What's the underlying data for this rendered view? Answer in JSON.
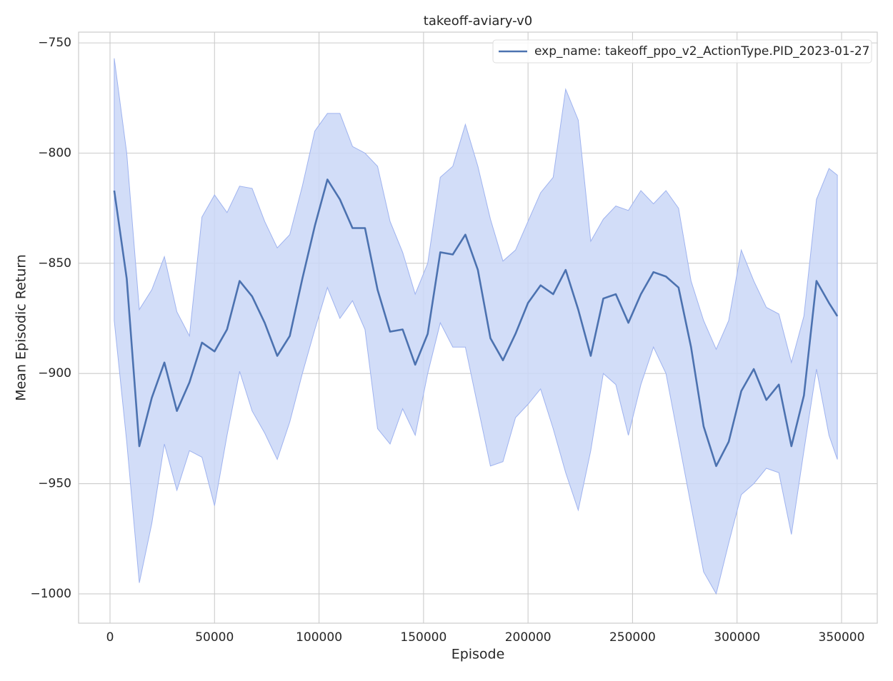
{
  "chart_data": {
    "type": "line",
    "title": "takeoff-aviary-v0",
    "x_label": "Episode",
    "y_label": "Mean Episodic Return",
    "x": [
      2000,
      8000,
      14000,
      20000,
      26000,
      32000,
      38000,
      44000,
      50000,
      56000,
      62000,
      68000,
      74000,
      80000,
      86000,
      92000,
      98000,
      104000,
      110000,
      116000,
      122000,
      128000,
      134000,
      140000,
      146000,
      152000,
      158000,
      164000,
      170000,
      176000,
      182000,
      188000,
      194000,
      200000,
      206000,
      212000,
      218000,
      224000,
      230000,
      236000,
      242000,
      248000,
      254000,
      260000,
      266000,
      272000,
      278000,
      284000,
      290000,
      296000,
      302000,
      308000,
      314000,
      320000,
      326000,
      332000,
      338000,
      344000,
      348000
    ],
    "series": [
      {
        "name": "exp_name: takeoff_ppo_v2_ActionType.PID_2023-01-27",
        "color": "#4c72b0",
        "band_color": "#cad7f7",
        "values": [
          -817,
          -857,
          -933,
          -911,
          -895,
          -917,
          -904,
          -886,
          -890,
          -880,
          -858,
          -865,
          -877,
          -892,
          -883,
          -857,
          -833,
          -812,
          -821,
          -834,
          -834,
          -862,
          -881,
          -880,
          -896,
          -882,
          -845,
          -846,
          -837,
          -853,
          -884,
          -894,
          -882,
          -868,
          -860,
          -864,
          -853,
          -871,
          -892,
          -866,
          -864,
          -877,
          -864,
          -854,
          -856,
          -861,
          -888,
          -924,
          -942,
          -931,
          -908,
          -898,
          -912,
          -905,
          -933,
          -910,
          -858,
          -868,
          -874
        ],
        "upper": [
          -757,
          -800,
          -871,
          -862,
          -847,
          -872,
          -883,
          -829,
          -819,
          -827,
          -815,
          -816,
          -831,
          -843,
          -837,
          -815,
          -790,
          -782,
          -782,
          -797,
          -800,
          -806,
          -831,
          -845,
          -864,
          -850,
          -811,
          -806,
          -787,
          -806,
          -830,
          -849,
          -844,
          -831,
          -818,
          -811,
          -771,
          -785,
          -840,
          -830,
          -824,
          -826,
          -817,
          -823,
          -817,
          -825,
          -858,
          -876,
          -889,
          -876,
          -844,
          -858,
          -870,
          -873,
          -895,
          -874,
          -821,
          -807,
          -810
        ],
        "lower": [
          -876,
          -931,
          -995,
          -968,
          -932,
          -953,
          -935,
          -938,
          -960,
          -928,
          -899,
          -917,
          -927,
          -939,
          -922,
          -900,
          -880,
          -861,
          -875,
          -867,
          -880,
          -925,
          -932,
          -916,
          -928,
          -900,
          -877,
          -888,
          -888,
          -915,
          -942,
          -940,
          -920,
          -914,
          -907,
          -925,
          -945,
          -962,
          -935,
          -900,
          -905,
          -928,
          -905,
          -888,
          -900,
          -930,
          -960,
          -990,
          -1000,
          -977,
          -955,
          -950,
          -943,
          -945,
          -973,
          -935,
          -898,
          -928,
          -939
        ]
      }
    ],
    "xlim": [
      -15039,
      367090
    ],
    "ylim": [
      -1013.3,
      -745.1
    ],
    "xticks": [
      0,
      50000,
      100000,
      150000,
      200000,
      250000,
      300000,
      350000
    ],
    "yticks": [
      {
        "value": -1000,
        "label": "−1000"
      },
      {
        "value": -950,
        "label": "−950"
      },
      {
        "value": -900,
        "label": "−900"
      },
      {
        "value": -850,
        "label": "−850"
      },
      {
        "value": -800,
        "label": "−800"
      },
      {
        "value": -750,
        "label": "−750"
      }
    ],
    "grid": true,
    "legend_position": "upper-right"
  }
}
